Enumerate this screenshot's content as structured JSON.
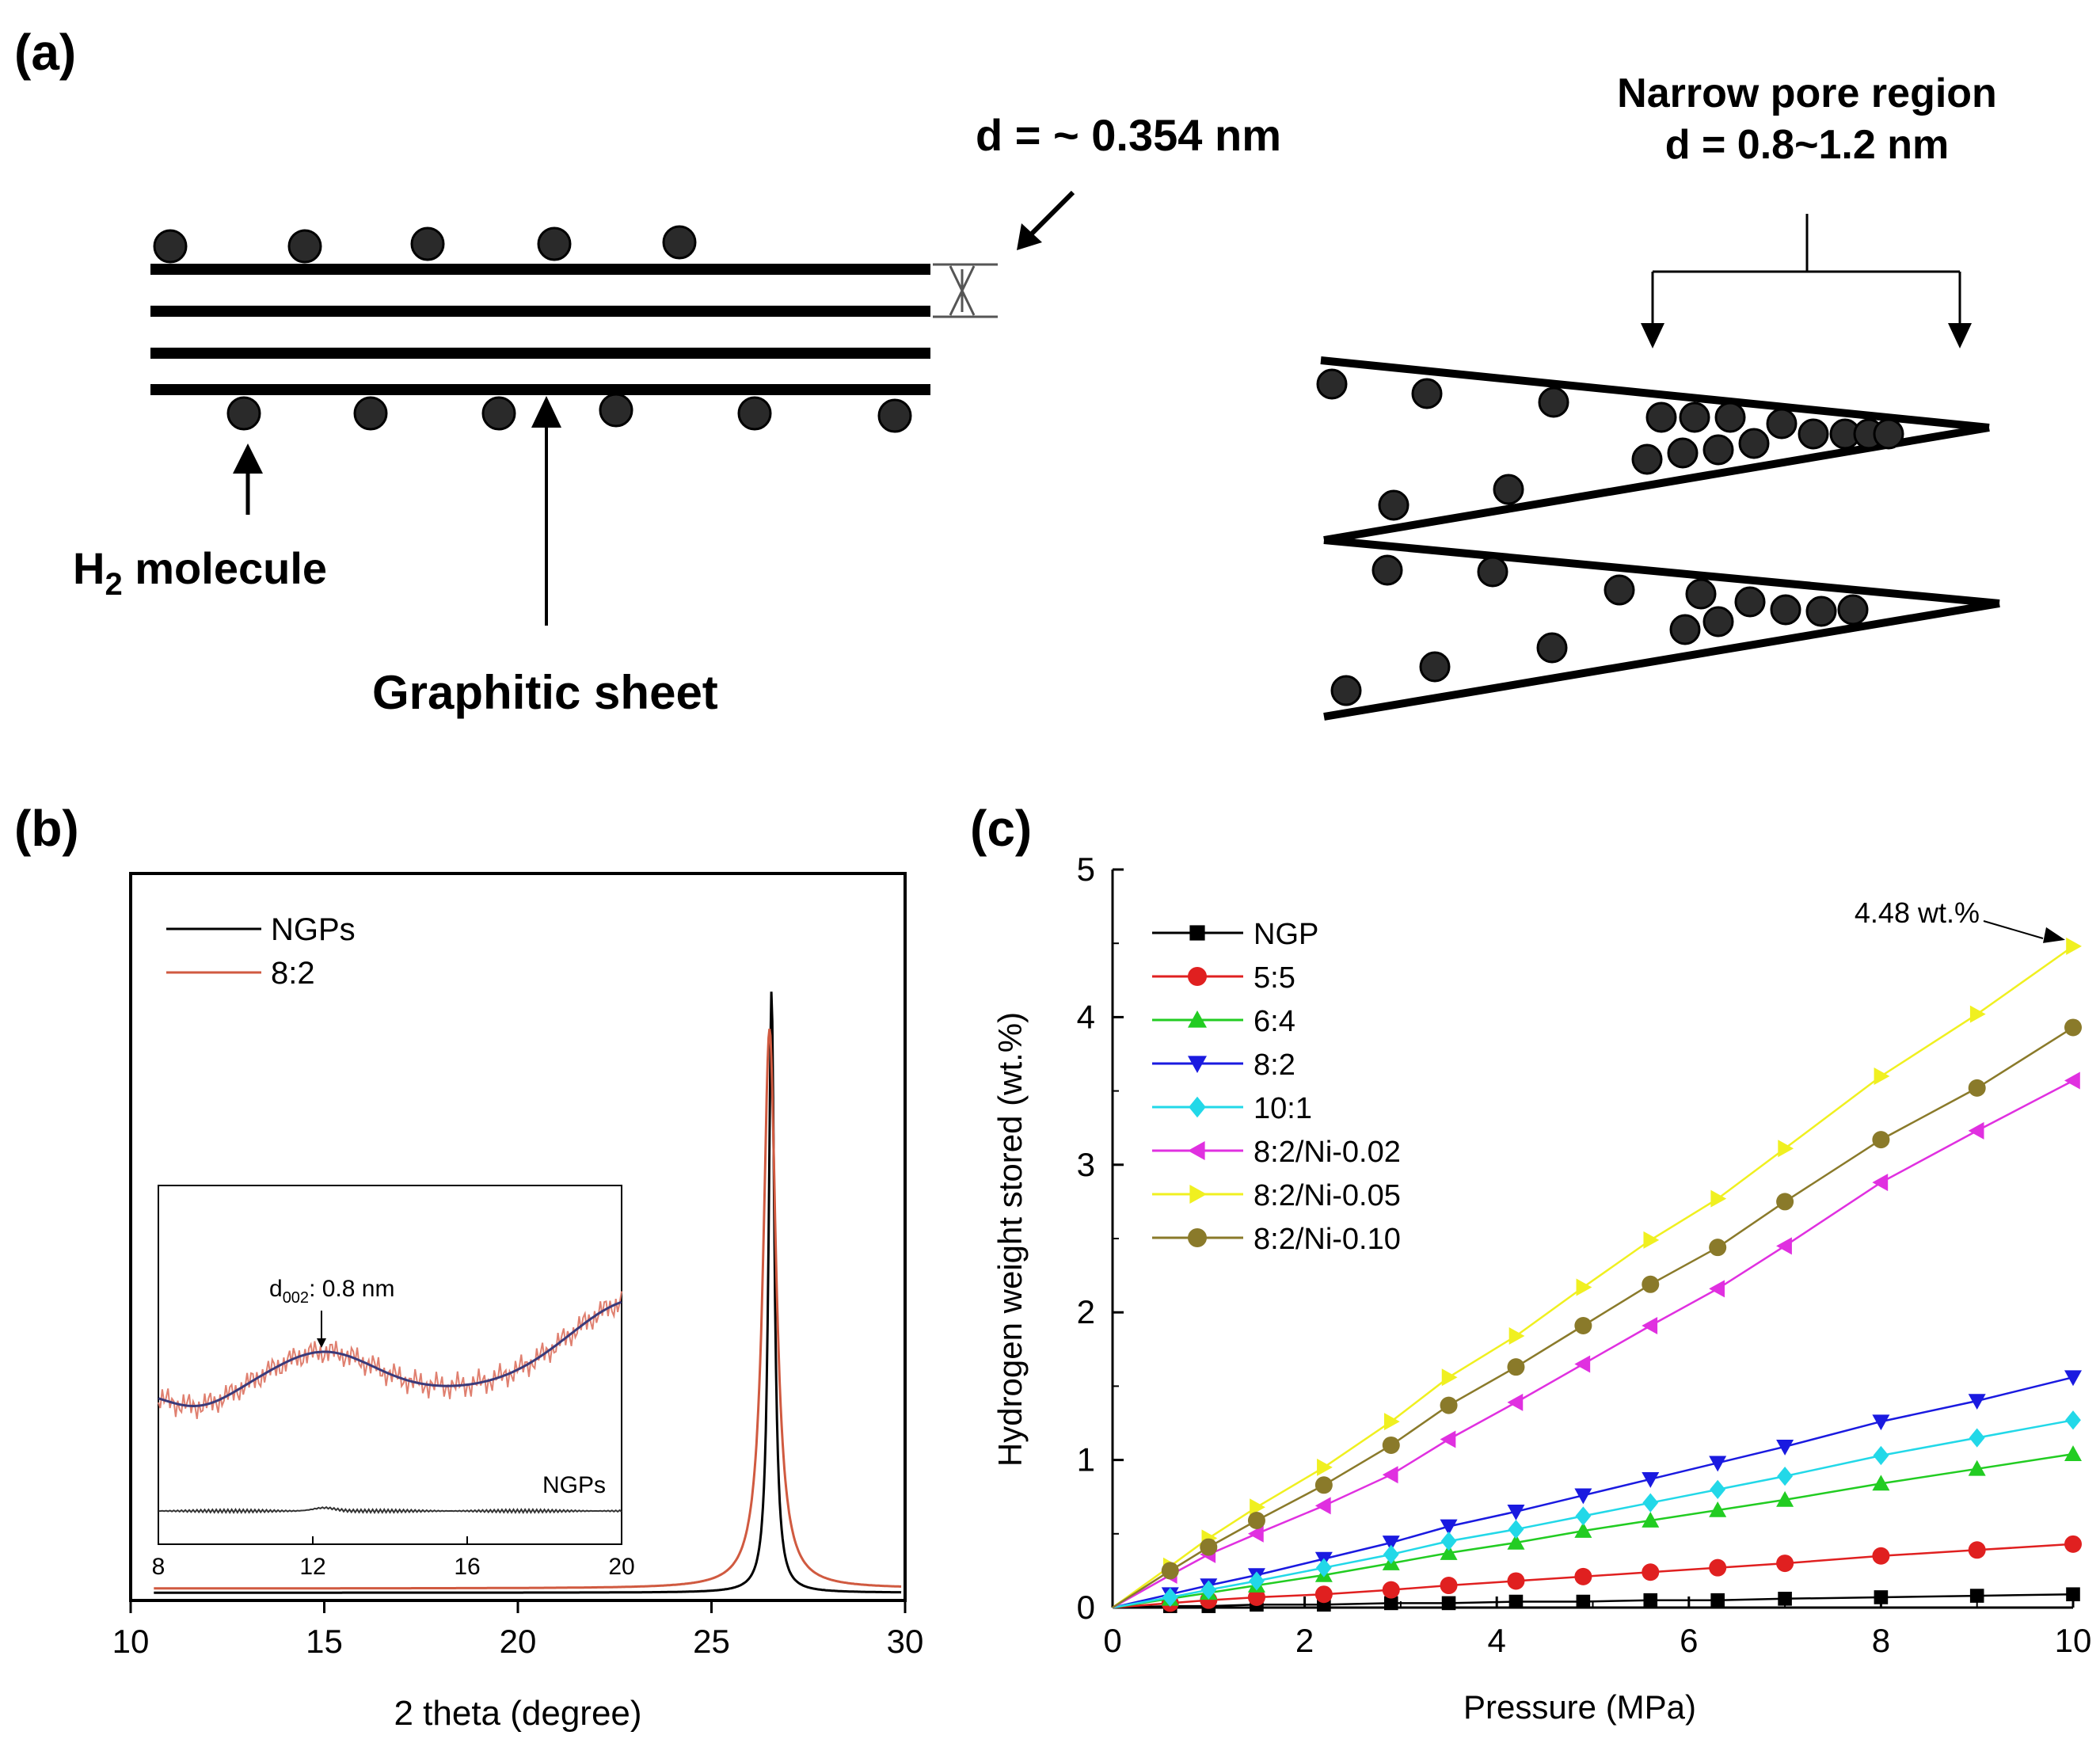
{
  "panel_a": {
    "label": "(a)",
    "d_label": "d = ~ 0.354 nm",
    "h2_label_main": "H",
    "h2_label_sub": "2",
    "h2_label_rest": " molecule",
    "sheet_label": "Graphitic sheet",
    "pore_title": "Narrow pore region",
    "pore_d": "d = 0.8~1.2 nm"
  },
  "chart_data": [
    {
      "panel": "(b)",
      "type": "line",
      "title": "",
      "xlabel": "2 theta (degree)",
      "ylabel": "",
      "xlim": [
        10,
        30
      ],
      "xticks": [
        "10",
        "15",
        "20",
        "25",
        "30"
      ],
      "legend": [
        "NGPs",
        "8:2"
      ],
      "legend_position": "top-left",
      "series": [
        {
          "name": "NGPs",
          "color": "#000000",
          "peak_x": 26.55,
          "peak_y": 1.0,
          "hwhm": 0.09,
          "baseline": 0.005
        },
        {
          "name": "8:2",
          "color": "#d05a40",
          "peak_x": 26.5,
          "peak_y": 0.93,
          "hwhm": 0.2,
          "baseline": 0.012
        }
      ],
      "inset": {
        "xlim": [
          8,
          20
        ],
        "xticks": [
          "8",
          "12",
          "16",
          "20"
        ],
        "annotation_d": "d",
        "annotation_sub": "002",
        "annotation_rest": ": 0.8 nm",
        "annotation_x": 12,
        "curve_label": "NGPs",
        "fit_color": "#3a3a7a",
        "raw_color": "#e08070"
      }
    },
    {
      "panel": "(c)",
      "type": "line",
      "title": "",
      "xlabel": "Pressure (MPa)",
      "ylabel": "Hydrogen weight stored (wt.%)",
      "xlim": [
        0,
        10
      ],
      "ylim": [
        0,
        5
      ],
      "xticks": [
        "0",
        "2",
        "4",
        "6",
        "8",
        "10"
      ],
      "yticks": [
        "0",
        "1",
        "2",
        "3",
        "4",
        "5"
      ],
      "legend_position": "top-left",
      "annotation": {
        "text": "4.48 wt.%",
        "x": 10,
        "y": 4.48
      },
      "series": [
        {
          "name": "NGP",
          "color": "#000000",
          "marker": "square",
          "x": [
            0,
            0.6,
            1.0,
            1.5,
            2.2,
            2.9,
            3.5,
            4.2,
            4.9,
            5.6,
            6.3,
            7.0,
            8.0,
            9.0,
            10.0
          ],
          "y": [
            0,
            0.01,
            0.01,
            0.02,
            0.02,
            0.03,
            0.03,
            0.04,
            0.04,
            0.05,
            0.05,
            0.06,
            0.07,
            0.08,
            0.09
          ]
        },
        {
          "name": "5:5",
          "color": "#e02020",
          "marker": "circle",
          "x": [
            0,
            0.6,
            1.0,
            1.5,
            2.2,
            2.9,
            3.5,
            4.2,
            4.9,
            5.6,
            6.3,
            7.0,
            8.0,
            9.0,
            10.0
          ],
          "y": [
            0,
            0.03,
            0.05,
            0.07,
            0.09,
            0.12,
            0.15,
            0.18,
            0.21,
            0.24,
            0.27,
            0.3,
            0.35,
            0.39,
            0.43
          ]
        },
        {
          "name": "6:4",
          "color": "#22cc22",
          "marker": "triangle-up",
          "x": [
            0,
            0.6,
            1.0,
            1.5,
            2.2,
            2.9,
            3.5,
            4.2,
            4.9,
            5.6,
            6.3,
            7.0,
            8.0,
            9.0,
            10.0
          ],
          "y": [
            0,
            0.06,
            0.1,
            0.15,
            0.22,
            0.3,
            0.37,
            0.44,
            0.52,
            0.59,
            0.66,
            0.73,
            0.84,
            0.94,
            1.04
          ]
        },
        {
          "name": "8:2",
          "color": "#1a1ae0",
          "marker": "triangle-down",
          "x": [
            0,
            0.6,
            1.0,
            1.5,
            2.2,
            2.9,
            3.5,
            4.2,
            4.9,
            5.6,
            6.3,
            7.0,
            8.0,
            9.0,
            10.0
          ],
          "y": [
            0,
            0.09,
            0.15,
            0.22,
            0.33,
            0.44,
            0.55,
            0.65,
            0.76,
            0.87,
            0.98,
            1.09,
            1.26,
            1.4,
            1.56
          ]
        },
        {
          "name": "10:1",
          "color": "#22d8e8",
          "marker": "diamond",
          "x": [
            0,
            0.6,
            1.0,
            1.5,
            2.2,
            2.9,
            3.5,
            4.2,
            4.9,
            5.6,
            6.3,
            7.0,
            8.0,
            9.0,
            10.0
          ],
          "y": [
            0,
            0.07,
            0.12,
            0.18,
            0.27,
            0.36,
            0.45,
            0.53,
            0.62,
            0.71,
            0.8,
            0.89,
            1.03,
            1.15,
            1.27
          ]
        },
        {
          "name": "8:2/Ni-0.02",
          "color": "#e030e0",
          "marker": "triangle-left",
          "x": [
            0,
            0.6,
            1.0,
            1.5,
            2.2,
            2.9,
            3.5,
            4.2,
            4.9,
            5.6,
            6.3,
            7.0,
            8.0,
            9.0,
            10.0
          ],
          "y": [
            0,
            0.22,
            0.36,
            0.5,
            0.69,
            0.9,
            1.14,
            1.39,
            1.65,
            1.91,
            2.16,
            2.45,
            2.88,
            3.23,
            3.57
          ]
        },
        {
          "name": "8:2/Ni-0.05",
          "color": "#f0f020",
          "marker": "triangle-right",
          "x": [
            0,
            0.6,
            1.0,
            1.5,
            2.2,
            2.9,
            3.5,
            4.2,
            4.9,
            5.6,
            6.3,
            7.0,
            8.0,
            9.0,
            10.0
          ],
          "y": [
            0,
            0.28,
            0.47,
            0.68,
            0.95,
            1.26,
            1.56,
            1.84,
            2.17,
            2.49,
            2.77,
            3.11,
            3.6,
            4.02,
            4.48
          ]
        },
        {
          "name": "8:2/Ni-0.10",
          "color": "#8a7a2a",
          "marker": "circle",
          "x": [
            0,
            0.6,
            1.0,
            1.5,
            2.2,
            2.9,
            3.5,
            4.2,
            4.9,
            5.6,
            6.3,
            7.0,
            8.0,
            9.0,
            10.0
          ],
          "y": [
            0,
            0.25,
            0.41,
            0.59,
            0.83,
            1.1,
            1.37,
            1.63,
            1.91,
            2.19,
            2.44,
            2.75,
            3.17,
            3.52,
            3.93
          ]
        }
      ]
    }
  ]
}
